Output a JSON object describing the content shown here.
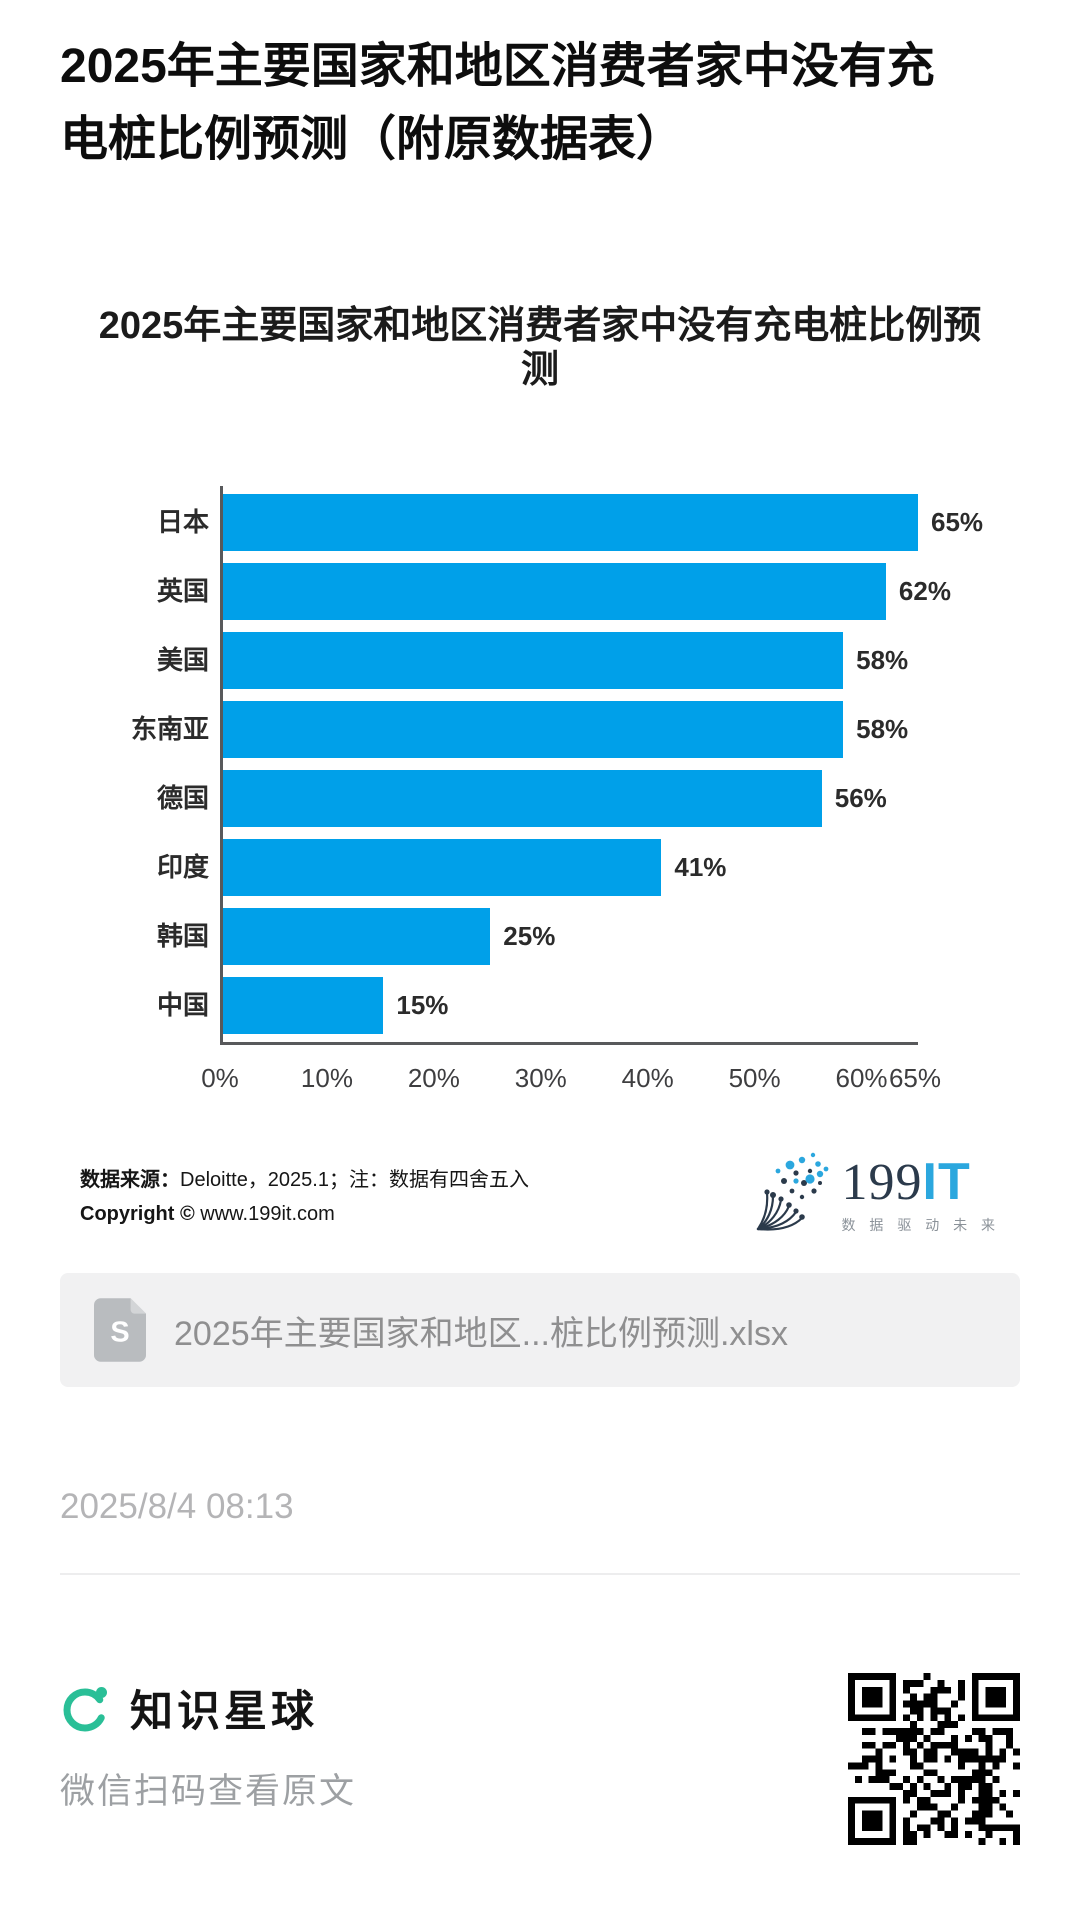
{
  "page": {
    "title_line1": "2025年主要国家和地区消费者家中没有充",
    "title_line2": "电桩比例预测（附原数据表）",
    "date": "2025/8/4 08:13"
  },
  "chart_data": {
    "type": "bar",
    "orientation": "horizontal",
    "title": "2025年主要国家和地区消费者家中没有充电桩比例预测",
    "categories": [
      "日本",
      "英国",
      "美国",
      "东南亚",
      "德国",
      "印度",
      "韩国",
      "中国"
    ],
    "values": [
      65,
      62,
      58,
      58,
      56,
      41,
      25,
      15
    ],
    "value_labels": [
      "65%",
      "62%",
      "58%",
      "58%",
      "56%",
      "41%",
      "25%",
      "15%"
    ],
    "xlabel": "",
    "ylabel": "",
    "xlim": [
      0,
      65
    ],
    "x_ticks": [
      0,
      10,
      20,
      30,
      40,
      50,
      60,
      65
    ],
    "x_tick_labels": [
      "0%",
      "10%",
      "20%",
      "30%",
      "40%",
      "50%",
      "60%",
      "65%"
    ],
    "grid": "off",
    "legend": "none",
    "bar_color": "#00A0E9",
    "axis_color": "#58595b"
  },
  "source": {
    "line1_bold": "数据来源：",
    "line1_rest": "Deloitte，2025.1；注：数据有四舍五入",
    "line2_bold": "Copyright ©",
    "line2_rest": " www.199it.com"
  },
  "brand": {
    "logo_199": "199",
    "logo_it": "IT",
    "slogan": "数 据 驱 动 未 来",
    "icon": "dandelion-icon",
    "color_dark": "#2b3a4b",
    "color_blue": "#2BA7DE"
  },
  "attachment": {
    "filename": "2025年主要国家和地区...桩比例预测.xlsx",
    "icon": "spreadsheet-file-icon"
  },
  "footer": {
    "brand_name": "知识星球",
    "caption": "微信扫码查看原文",
    "brand_color": "#2ABF97",
    "qr": "qr-code"
  }
}
